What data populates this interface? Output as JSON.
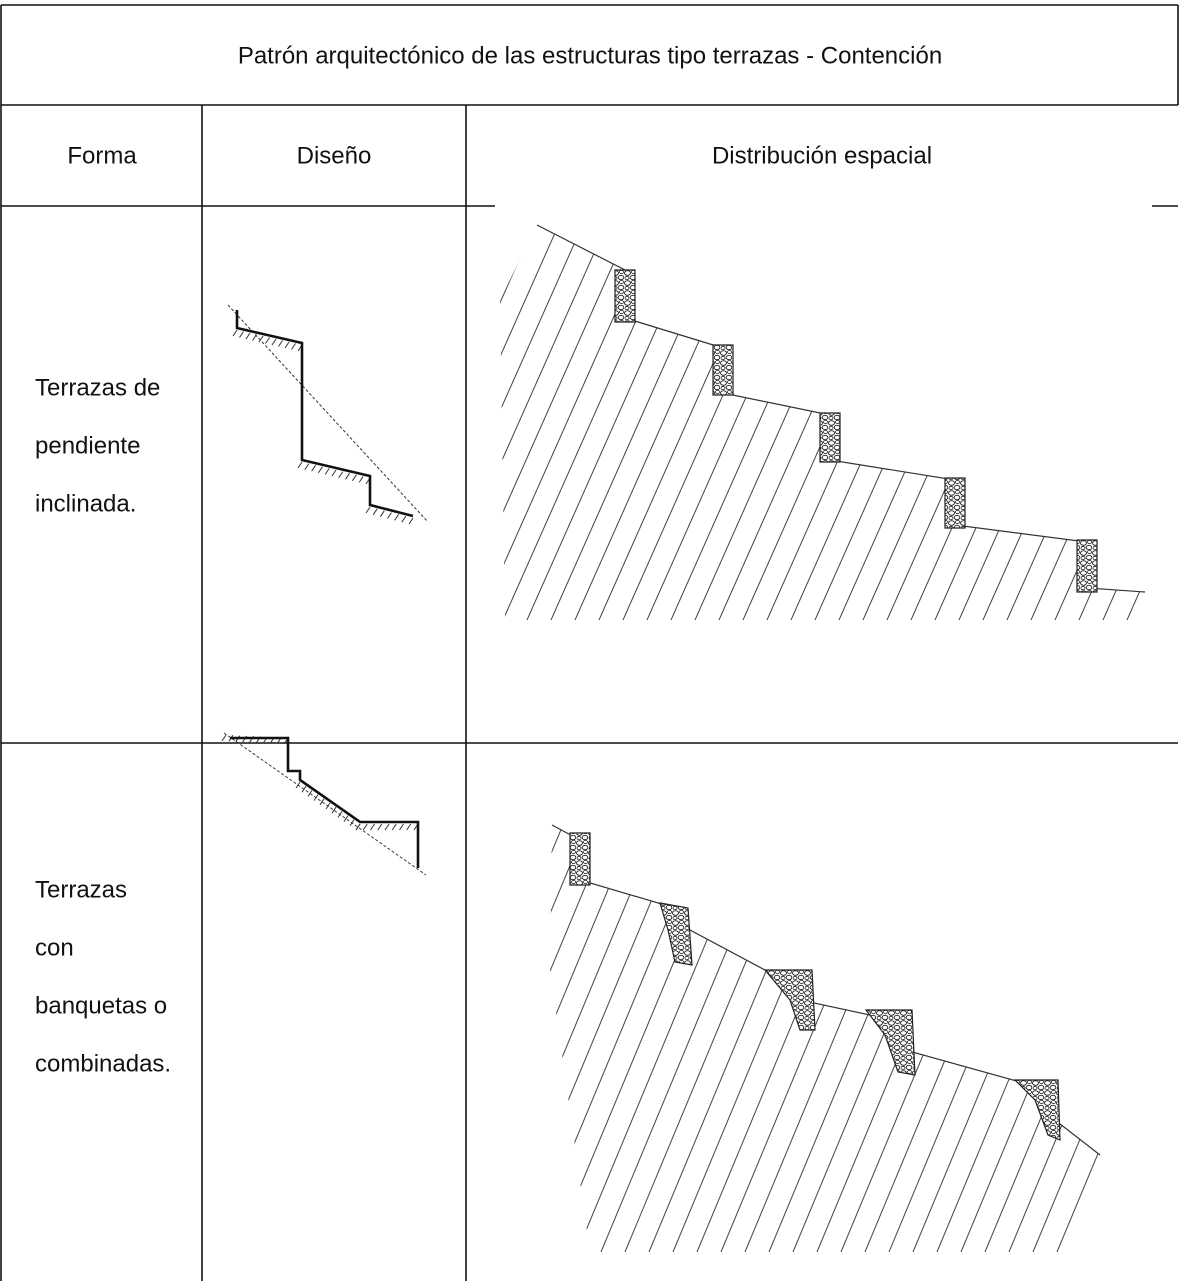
{
  "table": {
    "title": "Patrón arquitectónico de las estructuras tipo terrazas - Contención",
    "headers": [
      "Forma",
      "Diseño",
      "Distribución espacial"
    ],
    "rows": [
      {
        "form": [
          "Terrazas de",
          "pendiente",
          "inclinada."
        ]
      },
      {
        "form": [
          "Terrazas",
          "con",
          "banquetas o",
          "combinadas."
        ]
      }
    ]
  }
}
